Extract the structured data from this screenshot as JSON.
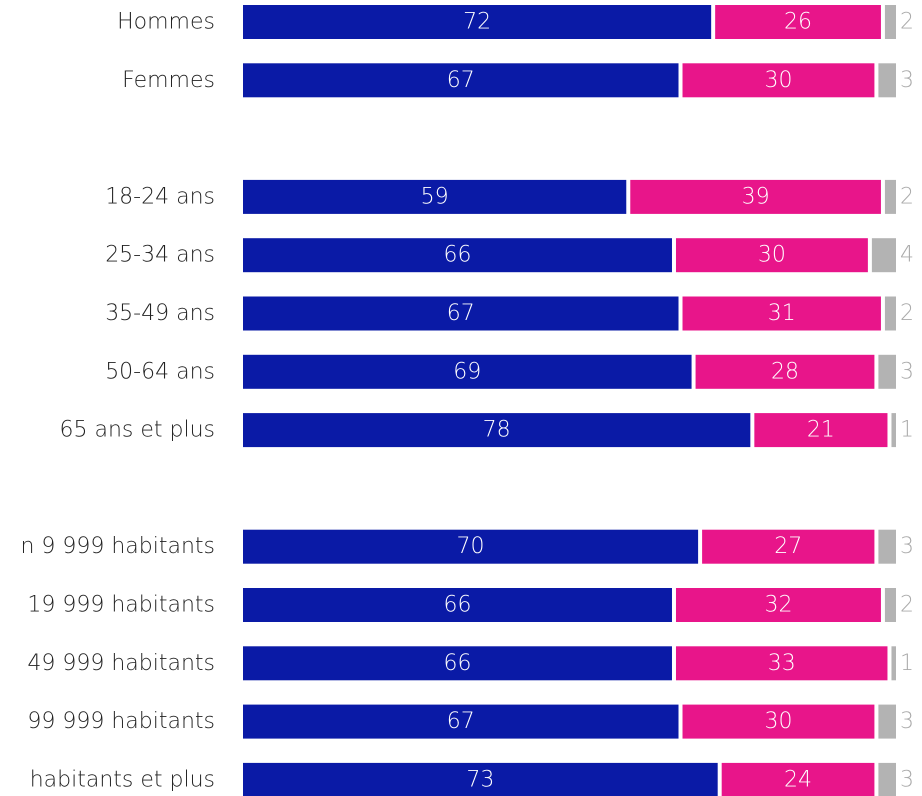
{
  "chart_data": {
    "type": "stacked-bar-horizontal",
    "categories": [
      "Hommes",
      "Femmes",
      null,
      "18-24 ans",
      "25-34 ans",
      "35-49 ans",
      "50-64 ans",
      "65 ans et plus",
      null,
      "n 9 999 habitants",
      "19 999 habitants",
      "49 999 habitants",
      "99 999 habitants",
      "habitants et plus"
    ],
    "series": [
      {
        "color": "#0a1aa6",
        "values": [
          72,
          67,
          null,
          59,
          66,
          67,
          69,
          78,
          null,
          70,
          66,
          66,
          67,
          73
        ]
      },
      {
        "color": "#e8158a",
        "values": [
          26,
          30,
          null,
          39,
          30,
          31,
          28,
          21,
          null,
          27,
          32,
          33,
          30,
          24
        ]
      },
      {
        "color": "#b3b3b3",
        "values": [
          2,
          3,
          null,
          2,
          4,
          2,
          3,
          1,
          null,
          3,
          2,
          1,
          3,
          3
        ]
      }
    ],
    "xlim": [
      0,
      100
    ]
  }
}
